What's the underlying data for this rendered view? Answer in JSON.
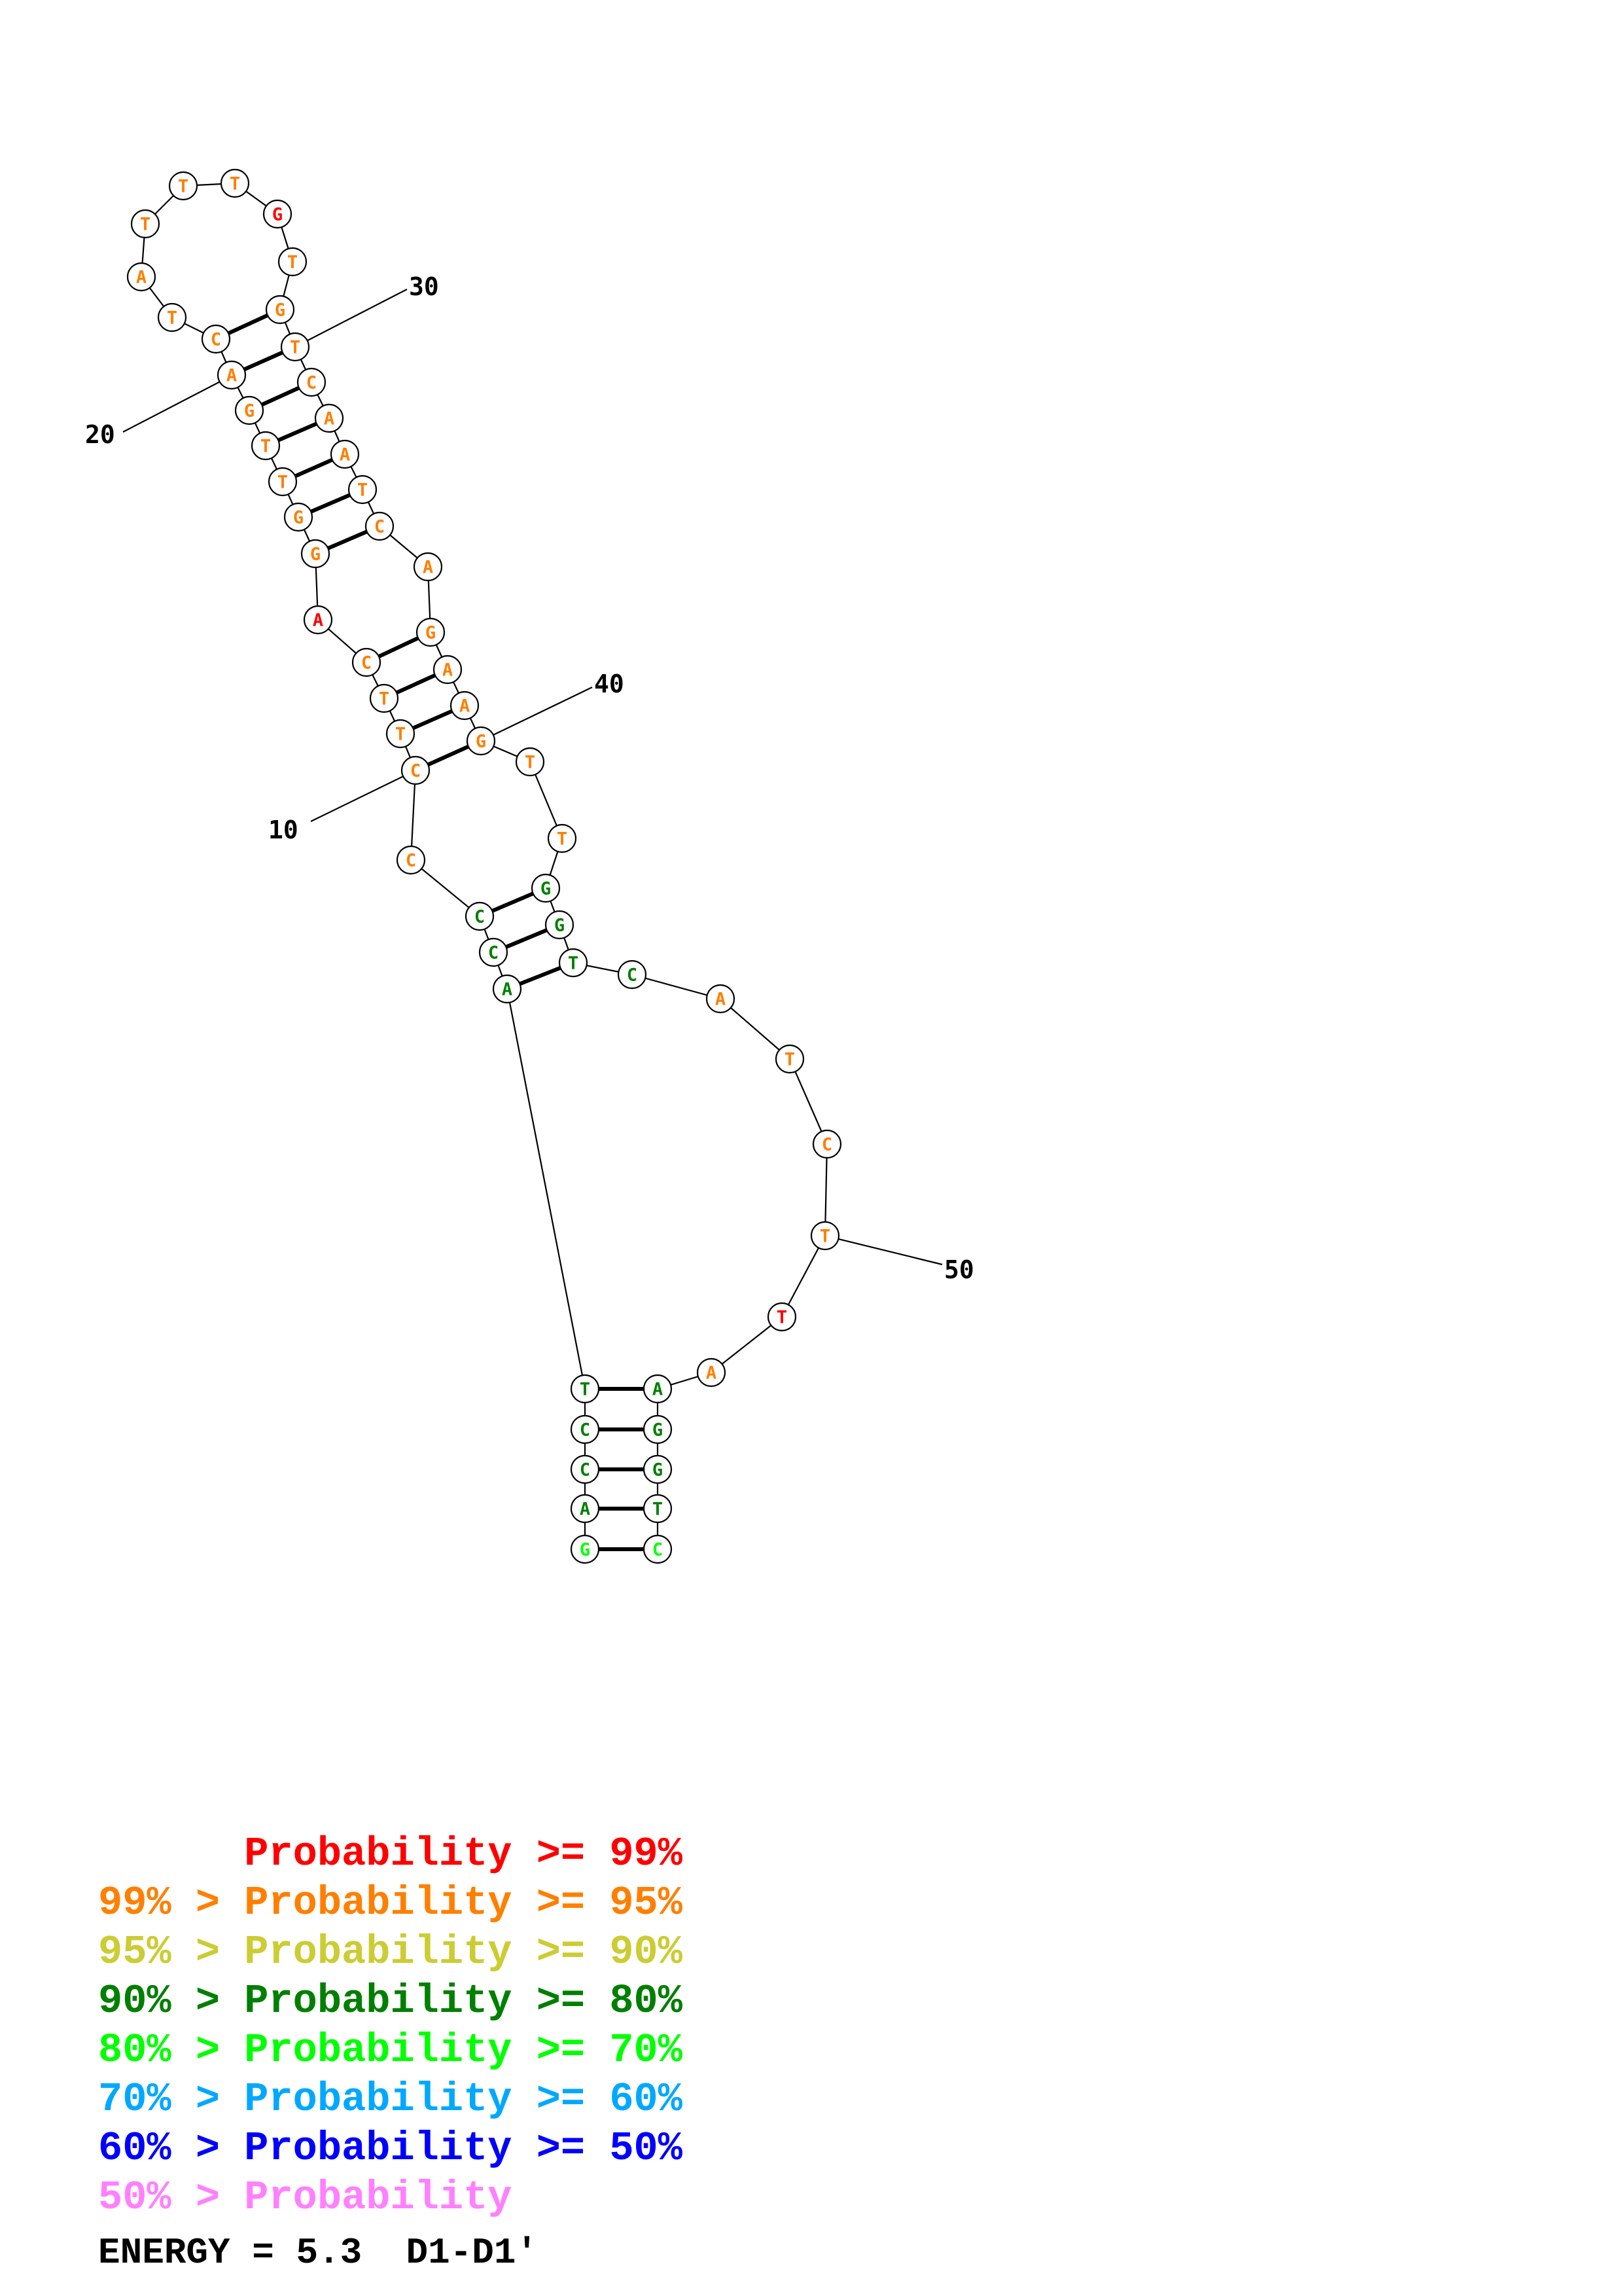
{
  "colors": {
    "p99": "#ff0000",
    "p95": "#ff7f00",
    "p90": "#cccc33",
    "p80": "#007f00",
    "p70": "#00ff00",
    "p60": "#00a8ff",
    "p50": "#0000ff",
    "plow": "#ff80ff"
  },
  "nucleotides": [
    {
      "i": 1,
      "b": "G",
      "c": "p70"
    },
    {
      "i": 2,
      "b": "A",
      "c": "p80"
    },
    {
      "i": 3,
      "b": "C",
      "c": "p80"
    },
    {
      "i": 4,
      "b": "C",
      "c": "p80"
    },
    {
      "i": 5,
      "b": "T",
      "c": "p80"
    },
    {
      "i": 6,
      "b": "A",
      "c": "p80"
    },
    {
      "i": 7,
      "b": "C",
      "c": "p80"
    },
    {
      "i": 8,
      "b": "C",
      "c": "p80"
    },
    {
      "i": 9,
      "b": "C",
      "c": "p95"
    },
    {
      "i": 10,
      "b": "C",
      "c": "p95"
    },
    {
      "i": 11,
      "b": "T",
      "c": "p95"
    },
    {
      "i": 12,
      "b": "T",
      "c": "p95"
    },
    {
      "i": 13,
      "b": "C",
      "c": "p95"
    },
    {
      "i": 14,
      "b": "A",
      "c": "p99"
    },
    {
      "i": 15,
      "b": "G",
      "c": "p95"
    },
    {
      "i": 16,
      "b": "G",
      "c": "p95"
    },
    {
      "i": 17,
      "b": "T",
      "c": "p95"
    },
    {
      "i": 18,
      "b": "T",
      "c": "p95"
    },
    {
      "i": 19,
      "b": "G",
      "c": "p95"
    },
    {
      "i": 20,
      "b": "A",
      "c": "p95"
    },
    {
      "i": 21,
      "b": "C",
      "c": "p95"
    },
    {
      "i": 22,
      "b": "T",
      "c": "p95"
    },
    {
      "i": 23,
      "b": "A",
      "c": "p95"
    },
    {
      "i": 24,
      "b": "T",
      "c": "p95"
    },
    {
      "i": 25,
      "b": "T",
      "c": "p95"
    },
    {
      "i": 26,
      "b": "T",
      "c": "p95"
    },
    {
      "i": 27,
      "b": "G",
      "c": "p99"
    },
    {
      "i": 28,
      "b": "T",
      "c": "p95"
    },
    {
      "i": 29,
      "b": "G",
      "c": "p95"
    },
    {
      "i": 30,
      "b": "T",
      "c": "p95"
    },
    {
      "i": 31,
      "b": "C",
      "c": "p95"
    },
    {
      "i": 32,
      "b": "A",
      "c": "p95"
    },
    {
      "i": 33,
      "b": "A",
      "c": "p95"
    },
    {
      "i": 34,
      "b": "T",
      "c": "p95"
    },
    {
      "i": 35,
      "b": "C",
      "c": "p95"
    },
    {
      "i": 36,
      "b": "A",
      "c": "p95"
    },
    {
      "i": 37,
      "b": "G",
      "c": "p95"
    },
    {
      "i": 38,
      "b": "A",
      "c": "p95"
    },
    {
      "i": 39,
      "b": "A",
      "c": "p95"
    },
    {
      "i": 40,
      "b": "G",
      "c": "p95"
    },
    {
      "i": 41,
      "b": "T",
      "c": "p95"
    },
    {
      "i": 42,
      "b": "T",
      "c": "p95"
    },
    {
      "i": 43,
      "b": "G",
      "c": "p80"
    },
    {
      "i": 44,
      "b": "G",
      "c": "p80"
    },
    {
      "i": 45,
      "b": "T",
      "c": "p80"
    },
    {
      "i": 46,
      "b": "C",
      "c": "p80"
    },
    {
      "i": 47,
      "b": "A",
      "c": "p95"
    },
    {
      "i": 48,
      "b": "T",
      "c": "p95"
    },
    {
      "i": 49,
      "b": "C",
      "c": "p95"
    },
    {
      "i": 50,
      "b": "T",
      "c": "p95"
    },
    {
      "i": 51,
      "b": "T",
      "c": "p99"
    },
    {
      "i": 52,
      "b": "A",
      "c": "p95"
    },
    {
      "i": 53,
      "b": "A",
      "c": "p80"
    },
    {
      "i": 54,
      "b": "G",
      "c": "p80"
    },
    {
      "i": 55,
      "b": "G",
      "c": "p80"
    },
    {
      "i": 56,
      "b": "T",
      "c": "p80"
    },
    {
      "i": 57,
      "b": "C",
      "c": "p70"
    }
  ],
  "pairs": [
    [
      1,
      57
    ],
    [
      2,
      56
    ],
    [
      3,
      55
    ],
    [
      4,
      54
    ],
    [
      5,
      53
    ],
    [
      6,
      45
    ],
    [
      7,
      44
    ],
    [
      8,
      43
    ],
    [
      10,
      40
    ],
    [
      11,
      39
    ],
    [
      12,
      38
    ],
    [
      13,
      37
    ],
    [
      15,
      35
    ],
    [
      16,
      34
    ],
    [
      17,
      33
    ],
    [
      18,
      32
    ],
    [
      19,
      31
    ],
    [
      20,
      30
    ],
    [
      21,
      29
    ]
  ],
  "position_labels": [
    "10",
    "20",
    "30",
    "40",
    "50"
  ],
  "legend": [
    {
      "prefix": "",
      "text": "Probability >= 99%",
      "c": "p99"
    },
    {
      "prefix": "99% > ",
      "text": "Probability >= 95%",
      "c": "p95"
    },
    {
      "prefix": "95% > ",
      "text": "Probability >= 90%",
      "c": "p90"
    },
    {
      "prefix": "90% > ",
      "text": "Probability >= 80%",
      "c": "p80"
    },
    {
      "prefix": "80% > ",
      "text": "Probability >= 70%",
      "c": "p70"
    },
    {
      "prefix": "70% > ",
      "text": "Probability >= 60%",
      "c": "p60"
    },
    {
      "prefix": "60% > ",
      "text": "Probability >= 50%",
      "c": "p50"
    },
    {
      "prefix": "50% > ",
      "text": "Probability",
      "c": "plow"
    }
  ],
  "energy": "ENERGY = 5.3  D1-D1'"
}
